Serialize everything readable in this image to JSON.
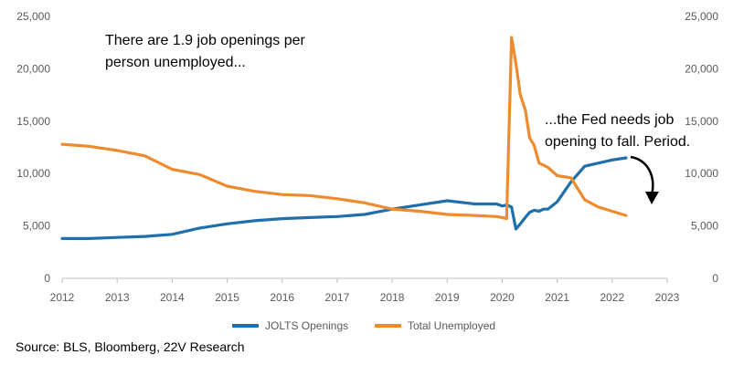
{
  "chart_data": {
    "type": "line",
    "x": [
      "2012",
      "2012.5",
      "2013",
      "2013.5",
      "2014",
      "2014.5",
      "2015",
      "2015.5",
      "2016",
      "2016.5",
      "2017",
      "2017.5",
      "2018",
      "2018.5",
      "2019",
      "2019.5",
      "2019.9",
      "2020.0",
      "2020.08",
      "2020.17",
      "2020.25",
      "2020.33",
      "2020.42",
      "2020.5",
      "2020.58",
      "2020.67",
      "2020.75",
      "2020.83",
      "2021",
      "2021.25",
      "2021.5",
      "2021.75",
      "2022",
      "2022.25"
    ],
    "series": [
      {
        "name": "JOLTS Openings",
        "color": "#1f6fad",
        "values": [
          3800,
          3800,
          3900,
          4000,
          4200,
          4800,
          5200,
          5500,
          5700,
          5800,
          5900,
          6100,
          6600,
          7000,
          7400,
          7100,
          7100,
          6900,
          7000,
          6800,
          4700,
          5200,
          5800,
          6300,
          6500,
          6400,
          6600,
          6600,
          7300,
          9200,
          10700,
          11000,
          11300,
          11500
        ]
      },
      {
        "name": "Total Unemployed",
        "color": "#ed8b2e",
        "values": [
          12800,
          12600,
          12200,
          11700,
          10400,
          9900,
          8800,
          8300,
          8000,
          7900,
          7600,
          7200,
          6600,
          6400,
          6100,
          6000,
          5900,
          5800,
          5700,
          23000,
          20500,
          17500,
          16100,
          13400,
          12700,
          11000,
          10800,
          10600,
          9800,
          9600,
          7500,
          6800,
          6400,
          6000
        ]
      }
    ],
    "yaxis_left": {
      "min": 0,
      "max": 25000,
      "ticks": [
        "0",
        "5,000",
        "10,000",
        "15,000",
        "20,000",
        "25,000"
      ]
    },
    "yaxis_right": {
      "min": 0,
      "max": 25000,
      "ticks": [
        "0",
        "5,000",
        "10,000",
        "15,000",
        "20,000",
        "25,000"
      ]
    },
    "xaxis": {
      "min": 2012,
      "max": 2023,
      "ticks": [
        "2012",
        "2013",
        "2014",
        "2015",
        "2016",
        "2017",
        "2018",
        "2019",
        "2020",
        "2021",
        "2022",
        "2023"
      ]
    },
    "grid": false,
    "legend": "bottom"
  },
  "annotations": {
    "left_text_line1": "There are 1.9 job openings per",
    "left_text_line2": "person unemployed...",
    "right_text_line1": "...the Fed needs job",
    "right_text_line2": "opening to fall. Period."
  },
  "source": "Source: BLS, Bloomberg, 22V Research",
  "colors": {
    "arrow": "#000000",
    "axis": "#bfbfbf"
  }
}
